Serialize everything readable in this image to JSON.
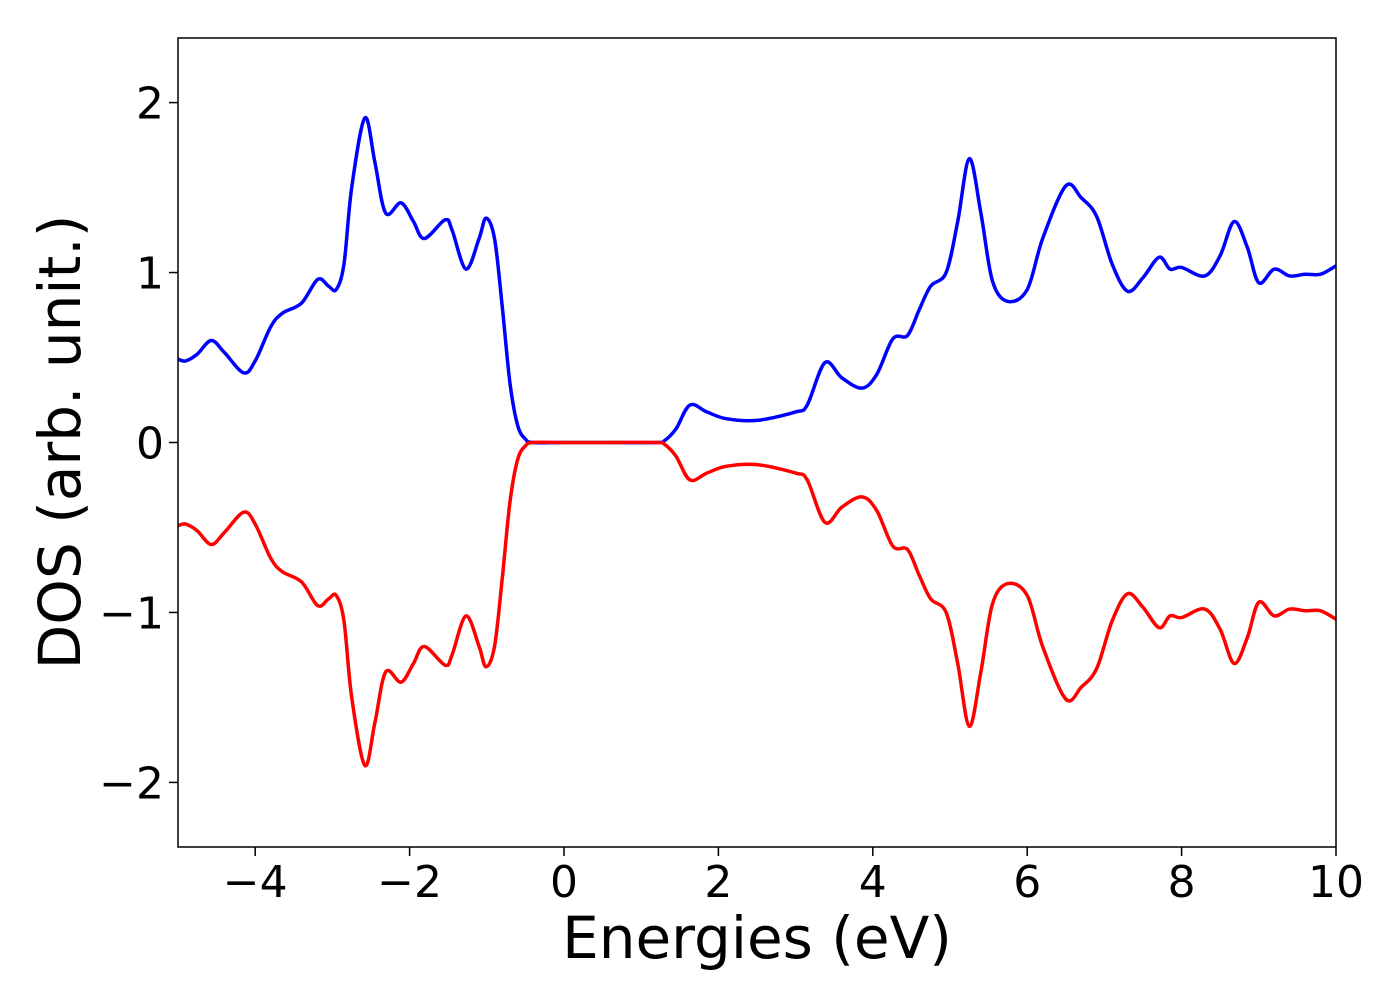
{
  "chart_data": {
    "type": "line",
    "xlabel": "Energies (eV)",
    "ylabel": "DOS (arb. unit.)",
    "xlim": [
      -5,
      10
    ],
    "ylim": [
      -2.38,
      2.38
    ],
    "xticks": [
      {
        "value": -4,
        "label": "−4"
      },
      {
        "value": -2,
        "label": "−2"
      },
      0,
      2,
      4,
      6,
      8,
      10
    ],
    "yticks": [
      {
        "value": -2,
        "label": "−2"
      },
      {
        "value": -1,
        "label": "−1"
      },
      0,
      1,
      2
    ],
    "x": [
      -5,
      -4.9,
      -4.75,
      -4.57,
      -4.4,
      -4.15,
      -4,
      -3.8,
      -3.65,
      -3.4,
      -3.19,
      -3.05,
      -2.95,
      -2.85,
      -2.75,
      -2.58,
      -2.45,
      -2.31,
      -2.11,
      -1.95,
      -1.81,
      -1.54,
      -1.45,
      -1.27,
      -1.1,
      -1.01,
      -0.9,
      -0.8,
      -0.7,
      -0.6,
      -0.5,
      -0.4,
      0,
      0.6,
      1.2,
      1.3,
      1.45,
      1.63,
      1.85,
      2.1,
      2.5,
      3,
      3.15,
      3.38,
      3.6,
      3.86,
      4.05,
      4.26,
      4.45,
      4.6,
      4.75,
      4.95,
      5.1,
      5.25,
      5.4,
      5.55,
      5.75,
      6,
      6.2,
      6.5,
      6.7,
      6.9,
      7.1,
      7.3,
      7.5,
      7.71,
      7.85,
      8,
      8.3,
      8.5,
      8.68,
      8.85,
      9,
      9.2,
      9.4,
      9.6,
      9.8,
      10
    ],
    "series": [
      {
        "color": "#0000ff",
        "values": [
          0.49,
          0.48,
          0.52,
          0.6,
          0.53,
          0.41,
          0.48,
          0.68,
          0.76,
          0.82,
          0.96,
          0.92,
          0.9,
          1.05,
          1.5,
          1.91,
          1.65,
          1.35,
          1.41,
          1.3,
          1.2,
          1.31,
          1.25,
          1.02,
          1.2,
          1.32,
          1.2,
          0.8,
          0.35,
          0.1,
          0.02,
          0,
          0,
          0,
          0,
          0.01,
          0.08,
          0.22,
          0.18,
          0.14,
          0.13,
          0.18,
          0.22,
          0.47,
          0.38,
          0.32,
          0.4,
          0.61,
          0.63,
          0.78,
          0.92,
          1,
          1.3,
          1.67,
          1.35,
          0.95,
          0.83,
          0.9,
          1.2,
          1.51,
          1.44,
          1.33,
          1.05,
          0.89,
          0.97,
          1.09,
          1.02,
          1.03,
          0.98,
          1.1,
          1.3,
          1.15,
          0.94,
          1.02,
          0.98,
          0.99,
          0.99,
          1.04
        ]
      },
      {
        "color": "#ff0000",
        "values": [
          -0.49,
          -0.48,
          -0.52,
          -0.6,
          -0.53,
          -0.41,
          -0.48,
          -0.68,
          -0.76,
          -0.82,
          -0.96,
          -0.92,
          -0.9,
          -1.05,
          -1.5,
          -1.9,
          -1.65,
          -1.35,
          -1.41,
          -1.3,
          -1.2,
          -1.31,
          -1.25,
          -1.02,
          -1.2,
          -1.32,
          -1.2,
          -0.8,
          -0.35,
          -0.1,
          -0.02,
          0,
          0,
          0,
          0,
          -0.01,
          -0.08,
          -0.22,
          -0.18,
          -0.14,
          -0.13,
          -0.18,
          -0.22,
          -0.47,
          -0.38,
          -0.32,
          -0.4,
          -0.61,
          -0.63,
          -0.78,
          -0.92,
          -1,
          -1.3,
          -1.67,
          -1.35,
          -0.95,
          -0.83,
          -0.9,
          -1.2,
          -1.51,
          -1.44,
          -1.33,
          -1.05,
          -0.89,
          -0.97,
          -1.09,
          -1.02,
          -1.03,
          -0.98,
          -1.1,
          -1.3,
          -1.15,
          -0.94,
          -1.02,
          -0.98,
          -0.99,
          -0.99,
          -1.04
        ]
      }
    ]
  }
}
